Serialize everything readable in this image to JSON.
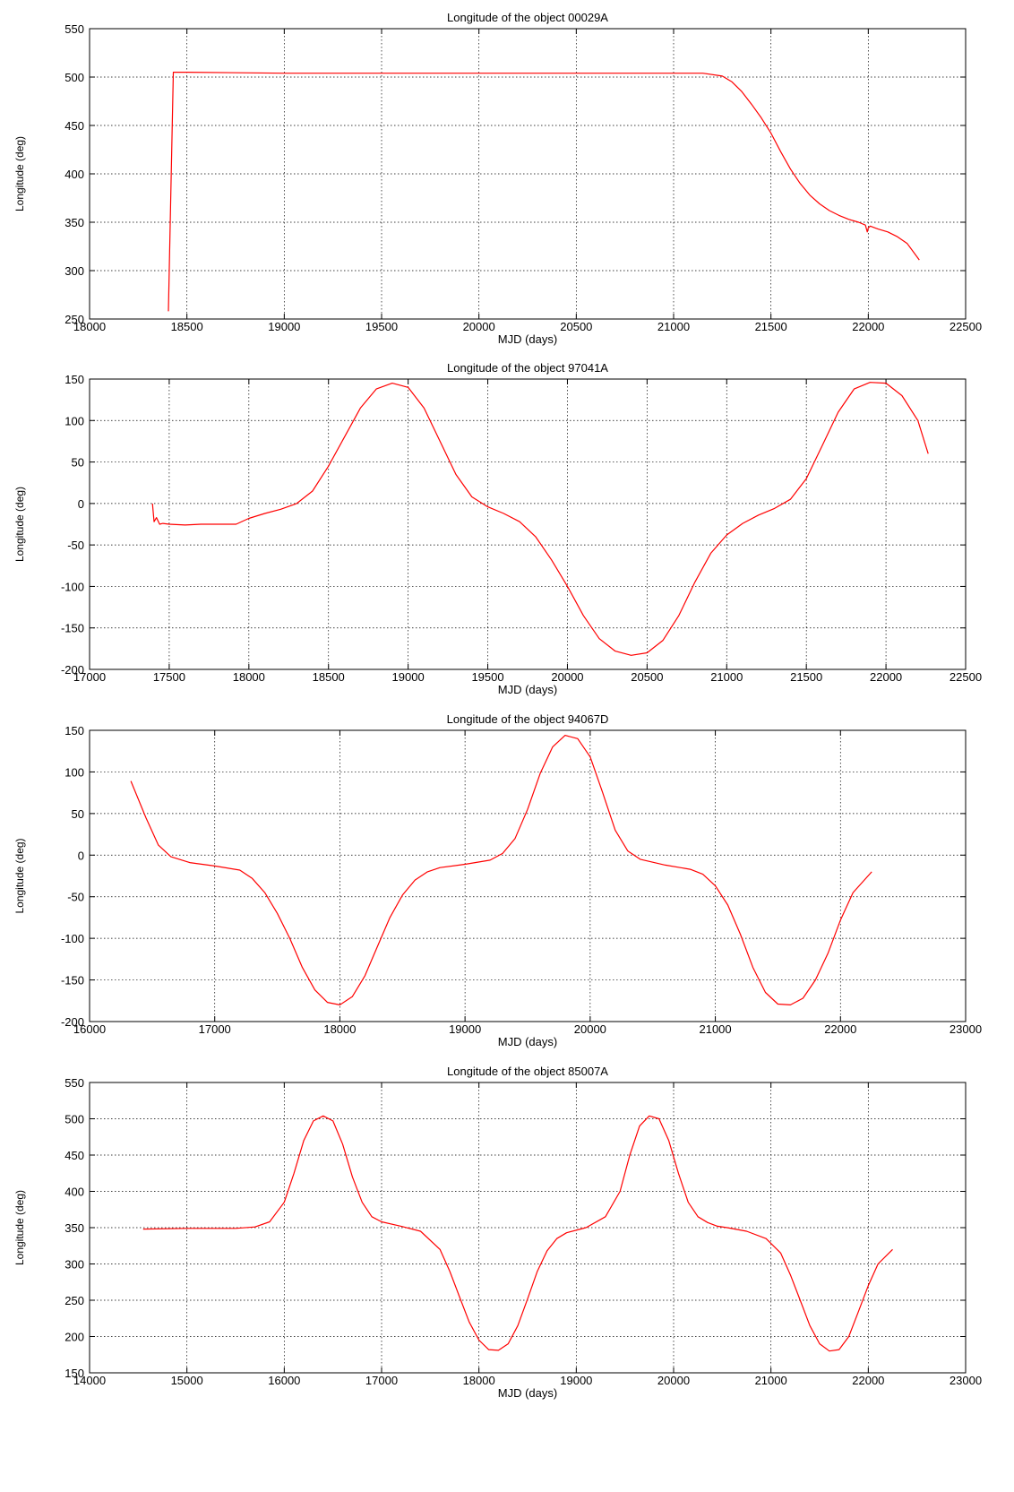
{
  "chart_data": [
    {
      "type": "line",
      "title": "Longitude of the object 00029A",
      "xlabel": "MJD (days)",
      "ylabel": "Longitude (deg)",
      "xlim": [
        18000,
        22500
      ],
      "ylim": [
        250,
        550
      ],
      "xticks": [
        18000,
        18500,
        19000,
        19500,
        20000,
        20500,
        21000,
        21500,
        22000,
        22500
      ],
      "yticks": [
        250,
        300,
        350,
        400,
        450,
        500,
        550
      ],
      "grid": true,
      "series": [
        {
          "color": "#ff0000",
          "x": [
            18405,
            18430,
            18500,
            19000,
            19500,
            20000,
            20500,
            20900,
            21150,
            21250,
            21300,
            21350,
            21400,
            21450,
            21500,
            21550,
            21600,
            21650,
            21700,
            21750,
            21800,
            21850,
            21900,
            21950,
            21985,
            21995,
            22000,
            22010,
            22050,
            22100,
            22150,
            22200,
            22262
          ],
          "y": [
            258,
            505,
            505,
            504,
            504,
            504,
            504,
            504,
            504,
            501,
            495,
            485,
            472,
            458,
            442,
            423,
            405,
            390,
            378,
            369,
            362,
            357,
            353,
            350,
            347,
            340,
            344,
            346,
            343,
            340,
            335,
            328,
            311
          ]
        }
      ]
    },
    {
      "type": "line",
      "title": "Longitude of the object 97041A",
      "xlabel": "MJD (days)",
      "ylabel": "Longitude (deg)",
      "xlim": [
        17000,
        22500
      ],
      "ylim": [
        -200,
        150
      ],
      "xticks": [
        17000,
        17500,
        18000,
        18500,
        19000,
        19500,
        20000,
        20500,
        21000,
        21500,
        22000,
        22500
      ],
      "yticks": [
        -200,
        -150,
        -100,
        -50,
        0,
        50,
        100,
        150
      ],
      "grid": true,
      "series": [
        {
          "color": "#ff0000",
          "x": [
            17395,
            17405,
            17420,
            17440,
            17460,
            17500,
            17600,
            17700,
            17800,
            17920,
            18000,
            18100,
            18200,
            18300,
            18400,
            18500,
            18600,
            18700,
            18800,
            18900,
            19000,
            19100,
            19200,
            19300,
            19400,
            19500,
            19600,
            19700,
            19800,
            19900,
            20000,
            20100,
            20200,
            20300,
            20400,
            20500,
            20600,
            20700,
            20800,
            20900,
            21000,
            21100,
            21200,
            21300,
            21400,
            21500,
            21600,
            21700,
            21800,
            21900,
            22000,
            22100,
            22200,
            22265
          ],
          "y": [
            0,
            -22,
            -17,
            -25,
            -24,
            -25,
            -26,
            -25,
            -25,
            -25,
            -18,
            -12,
            -7,
            0,
            15,
            45,
            80,
            115,
            138,
            145,
            140,
            115,
            75,
            35,
            8,
            -4,
            -12,
            -22,
            -40,
            -68,
            -100,
            -135,
            -163,
            -178,
            -183,
            -180,
            -165,
            -135,
            -95,
            -60,
            -38,
            -24,
            -14,
            -6,
            5,
            30,
            70,
            110,
            138,
            146,
            145,
            130,
            100,
            60
          ]
        }
      ]
    },
    {
      "type": "line",
      "title": "Longitude of the object 94067D",
      "xlabel": "MJD (days)",
      "ylabel": "Longitude (deg)",
      "xlim": [
        16000,
        23000
      ],
      "ylim": [
        -200,
        150
      ],
      "xticks": [
        16000,
        17000,
        18000,
        19000,
        20000,
        21000,
        22000,
        23000
      ],
      "yticks": [
        -200,
        -150,
        -100,
        -50,
        0,
        50,
        100,
        150
      ],
      "grid": true,
      "series": [
        {
          "color": "#ff0000",
          "x": [
            16330,
            16450,
            16550,
            16650,
            16800,
            17000,
            17200,
            17300,
            17400,
            17500,
            17600,
            17700,
            17800,
            17900,
            18000,
            18100,
            18200,
            18300,
            18400,
            18500,
            18600,
            18700,
            18800,
            19000,
            19200,
            19300,
            19400,
            19500,
            19600,
            19700,
            19800,
            19900,
            20000,
            20100,
            20200,
            20300,
            20400,
            20600,
            20800,
            20900,
            21000,
            21100,
            21200,
            21300,
            21400,
            21500,
            21600,
            21700,
            21800,
            21900,
            22000,
            22100,
            22250
          ],
          "y": [
            89,
            45,
            12,
            -2,
            -9,
            -13,
            -18,
            -28,
            -45,
            -70,
            -100,
            -135,
            -162,
            -177,
            -180,
            -170,
            -145,
            -110,
            -75,
            -48,
            -30,
            -20,
            -15,
            -11,
            -6,
            2,
            20,
            55,
            98,
            130,
            144,
            140,
            118,
            75,
            30,
            5,
            -5,
            -12,
            -17,
            -23,
            -37,
            -60,
            -95,
            -135,
            -165,
            -179,
            -180,
            -172,
            -150,
            -118,
            -78,
            -45,
            -20
          ]
        }
      ]
    },
    {
      "type": "line",
      "title": "Longitude of the object 85007A",
      "xlabel": "MJD (days)",
      "ylabel": "Longitude (deg)",
      "xlim": [
        14000,
        23000
      ],
      "ylim": [
        150,
        550
      ],
      "xticks": [
        14000,
        15000,
        16000,
        17000,
        18000,
        19000,
        20000,
        21000,
        22000,
        23000
      ],
      "yticks": [
        150,
        200,
        250,
        300,
        350,
        400,
        450,
        500,
        550
      ],
      "grid": true,
      "series": [
        {
          "color": "#ff0000",
          "x": [
            14550,
            15000,
            15500,
            15700,
            15850,
            16000,
            16100,
            16200,
            16300,
            16400,
            16500,
            16600,
            16700,
            16800,
            16900,
            17000,
            17200,
            17400,
            17600,
            17700,
            17800,
            17900,
            18000,
            18100,
            18200,
            18300,
            18400,
            18500,
            18600,
            18700,
            18800,
            18900,
            19100,
            19300,
            19450,
            19550,
            19650,
            19750,
            19850,
            19950,
            20050,
            20150,
            20250,
            20350,
            20450,
            20550,
            20750,
            20950,
            21100,
            21200,
            21300,
            21400,
            21500,
            21600,
            21700,
            21800,
            21900,
            22000,
            22100,
            22250
          ],
          "y": [
            348,
            349,
            349,
            351,
            358,
            385,
            425,
            470,
            497,
            504,
            497,
            465,
            420,
            385,
            365,
            358,
            352,
            345,
            320,
            290,
            255,
            220,
            195,
            182,
            181,
            190,
            215,
            252,
            290,
            318,
            335,
            343,
            350,
            365,
            400,
            450,
            490,
            504,
            500,
            470,
            425,
            385,
            365,
            357,
            352,
            350,
            345,
            335,
            315,
            285,
            250,
            215,
            190,
            180,
            182,
            200,
            235,
            270,
            300,
            320
          ]
        }
      ]
    }
  ]
}
